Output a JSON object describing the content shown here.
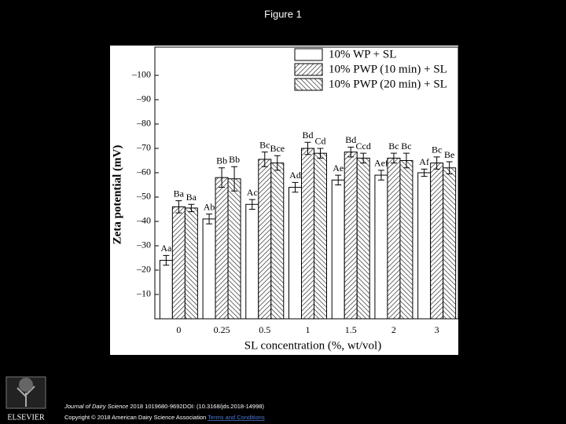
{
  "slide_title": "Figure 1",
  "chart_data": {
    "type": "bar",
    "xlabel": "SL concentration (%, wt/vol)",
    "ylabel": "Zeta potential (mV)",
    "categories": [
      "0",
      "0.25",
      "0.5",
      "1",
      "1.5",
      "2",
      "3"
    ],
    "ylim": [
      0,
      -111.6
    ],
    "yticks": [
      {
        "value": -100,
        "label": "–100"
      },
      {
        "value": -90,
        "label": "–90"
      },
      {
        "value": -80,
        "label": "–80"
      },
      {
        "value": -70,
        "label": "–70"
      },
      {
        "value": -60,
        "label": "–60"
      },
      {
        "value": -50,
        "label": "–50"
      },
      {
        "value": -40,
        "label": "–40"
      },
      {
        "value": -30,
        "label": "–30"
      },
      {
        "value": -20,
        "label": "–20"
      },
      {
        "value": -10,
        "label": "–10"
      }
    ],
    "legend": "upper right",
    "series": [
      {
        "name": "10% WP + SL",
        "color": "#ffffff",
        "hatch": "none",
        "values": [
          -24,
          -41,
          -47,
          -54,
          -57,
          -59,
          -60
        ],
        "errors": [
          2,
          2,
          2,
          2,
          2,
          2,
          1.5
        ],
        "letters": [
          "Aa",
          "Ab",
          "Ac",
          "Ad",
          "Ae",
          "Aef",
          "Af"
        ]
      },
      {
        "name": "10% PWP (10 min) + SL",
        "color": "#ffffff",
        "hatch": "forward",
        "values": [
          -46,
          -58,
          -65.5,
          -70,
          -68.5,
          -66,
          -64
        ],
        "errors": [
          2.5,
          4,
          3,
          2.5,
          2,
          2,
          2.5
        ],
        "letters": [
          "Ba",
          "Bb",
          "Bc",
          "Bd",
          "Bd",
          "Bc",
          "Bc"
        ]
      },
      {
        "name": "10% PWP (20 min) + SL",
        "color": "#ffffff",
        "hatch": "back",
        "values": [
          -45.5,
          -57.5,
          -64,
          -68,
          -66,
          -65,
          -62
        ],
        "errors": [
          1.5,
          5,
          3,
          2,
          2,
          3,
          2.5
        ],
        "letters": [
          "Ba",
          "Bb",
          "Bce",
          "Cd",
          "Ccd",
          "Bc",
          "Be"
        ]
      }
    ]
  },
  "footer": {
    "journal": "Journal of Dairy Science",
    "citation": "2018 1019680-9692DOI: (10.3168/jds.2018-14998)",
    "copyright": "Copyright © 2018 American Dairy Science Association",
    "link": "Terms and Conditions",
    "publisher": "ELSEVIER"
  }
}
